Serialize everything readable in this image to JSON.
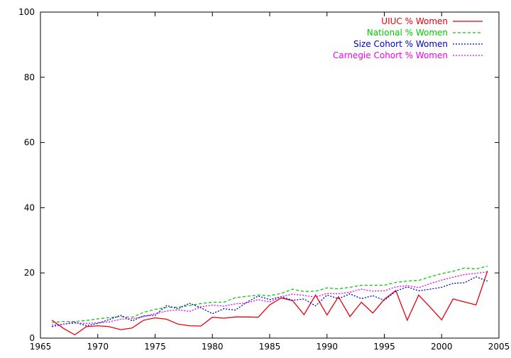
{
  "chart_data": {
    "type": "line",
    "title": "",
    "xlabel": "",
    "ylabel": "",
    "xlim": [
      1965,
      2005
    ],
    "ylim": [
      0,
      100
    ],
    "xticks": [
      1965,
      1970,
      1975,
      1980,
      1985,
      1990,
      1995,
      2000,
      2005
    ],
    "yticks": [
      0,
      20,
      40,
      60,
      80,
      100
    ],
    "grid": false,
    "legend_position": "top-right",
    "x": [
      1966,
      1967,
      1968,
      1969,
      1970,
      1971,
      1972,
      1973,
      1974,
      1975,
      1976,
      1977,
      1978,
      1979,
      1980,
      1981,
      1982,
      1983,
      1984,
      1985,
      1986,
      1987,
      1988,
      1989,
      1990,
      1991,
      1992,
      1993,
      1994,
      1995,
      1996,
      1997,
      1998,
      1999,
      2000,
      2001,
      2002,
      2003,
      2004
    ],
    "series": [
      {
        "name": "UIUC % Women",
        "color": "#e8000b",
        "dash": "solid",
        "values": [
          5.5,
          3.0,
          1.0,
          3.5,
          3.8,
          3.5,
          2.6,
          3.1,
          5.5,
          6.2,
          5.8,
          4.3,
          3.8,
          3.7,
          6.4,
          6.1,
          6.5,
          6.5,
          6.4,
          10.2,
          12.3,
          11.5,
          7.2,
          13.2,
          7.1,
          12.7,
          6.6,
          11.0,
          7.7,
          11.9,
          14.6,
          5.5,
          13.2,
          9.5,
          5.6,
          12.0,
          11.1,
          10.2,
          20.6
        ]
      },
      {
        "name": "National % Women",
        "color": "#00cc00",
        "dash": "dashed",
        "values": [
          4.8,
          5.1,
          5.1,
          5.4,
          5.9,
          6.3,
          6.6,
          6.4,
          7.9,
          8.8,
          9.4,
          9.5,
          10.0,
          10.6,
          11.0,
          11.0,
          12.4,
          12.8,
          13.2,
          13.0,
          13.7,
          15.0,
          14.3,
          14.4,
          15.4,
          15.1,
          15.6,
          16.2,
          16.2,
          16.2,
          17.1,
          17.5,
          17.7,
          18.8,
          19.8,
          20.5,
          21.5,
          21.2,
          22.1
        ]
      },
      {
        "name": "Size Cohort % Women",
        "color": "#0000cc",
        "dash": "dotted",
        "values": [
          3.5,
          4.3,
          4.9,
          3.8,
          4.5,
          5.7,
          7.0,
          5.3,
          6.8,
          7.0,
          10.0,
          9.0,
          10.7,
          9.3,
          7.5,
          9.0,
          8.6,
          11.0,
          12.9,
          11.8,
          12.7,
          11.6,
          12.0,
          9.9,
          13.2,
          12.1,
          13.6,
          12.1,
          13.0,
          11.6,
          14.4,
          15.7,
          14.5,
          15.0,
          15.6,
          16.8,
          17.0,
          18.8,
          17.5
        ]
      },
      {
        "name": "Carnegie Cohort % Women",
        "color": "#ee00ee",
        "dash": "dotted",
        "values": [
          4.0,
          4.3,
          4.6,
          4.5,
          4.7,
          5.0,
          5.8,
          6.0,
          6.6,
          7.5,
          8.3,
          8.7,
          8.2,
          9.6,
          10.1,
          9.8,
          10.5,
          10.8,
          11.8,
          11.1,
          12.7,
          13.5,
          13.1,
          12.6,
          13.7,
          13.6,
          14.1,
          15.0,
          14.4,
          14.5,
          15.7,
          16.1,
          15.5,
          16.7,
          17.8,
          18.7,
          19.5,
          19.9,
          20.3
        ]
      }
    ]
  }
}
